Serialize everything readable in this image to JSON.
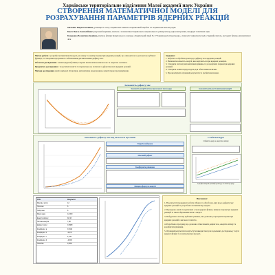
{
  "header": {
    "institution": "Харківське територіальне відділення Малої академії наук України",
    "title_line1": "СТВОРЕННЯ МАТЕМАТИЧНОЇ МОДЕЛІ ДЛЯ",
    "title_line2": "РОЗРАХУВАННЯ ПАРАМЕТРІВ ЯДЕРНИХ РЕАКЦІЙ"
  },
  "authors": {
    "a1_name": "Мельник Марія Євгенівна,",
    "a1_info": "учениця 11 класу Харківської гімназії «Харківський ліцей № 27 Харківської міської ради»",
    "a2_name": "Бекіл Павло Анатолійович,",
    "a2_info": "науковий керівник, вчитель з математики Харківського національного університету радіоелектроніки, кандидат технічних наук",
    "a3_name": "Безкровна Валентина Іванівна,",
    "a3_info": "вчитель фізики Комунального закладу «Харківський ліцей № 27 Харківської міської ради», спеціаліст вищої категорії, старший учитель, методист фізико-математичної ліги"
  },
  "intro": {
    "goal_label": "Метою роботи",
    "goal_text": "є розробка математичної моделі для опису та аналізу параметрів ядерних реакцій, що описуються за допомогою кубічної функції, та створення програмного забезпечення для визначення дефекту мас.",
    "object_label": "Об'єктом дослідження",
    "object_text": "є закони ядерної фізики, зокрема взаємозв'язок між масою та енергією частинок.",
    "subject_label": "Предметом дослідження",
    "subject_text": "є теоретичні поняття та параметри, що пов'язані з дефектом маси ядерних реакцій.",
    "methods_label": "Методи дослідження",
    "methods_text": "аналіз наукової літератури, математичне моделювання, комп'ютерне програмування."
  },
  "tasks": {
    "title": "Завдання:",
    "items": [
      "1. Зібрати та обробити дані щодо дефекту мас ядерних реакцій.",
      "2. Визначити кількість енергії, яка виділяється при ядерних реакціях.",
      "3. Створити систему математичних рівнянь та розрахувати параметри ядерних реакцій.",
      "4. Створити комп'ютерну модель для обчислення величин.",
      "5. Проаналізувати отримані результати та зробити висновки."
    ]
  },
  "section_defect": {
    "title": "Залежність дефекту мас",
    "sub1": "Залежність енергії зв'язку від масового числа ядра",
    "sub2": "Залежність кількості вивільненої енергії"
  },
  "section_middle": {
    "title": "Залежність дефекту мас від кількості нуклонів",
    "energy_label": "Енергія нейтрона",
    "mass_label": "Масовий дефект",
    "coefficients_label": "Коефіцієнти рівняння",
    "final_label": "Кінцева формула енергії"
  },
  "section_table": {
    "title": "Стабільні ядра",
    "title_note": "Стійкість ядер за енергією зв'язку",
    "caption": "Графіки енергії реакцій розпаду та синтезу ядер"
  },
  "data_table": {
    "header_left": "TPN",
    "header_right": "Результат",
    "rows": [
      {
        "label": "Масове число",
        "value": "12"
      },
      {
        "label": "Протони",
        "value": "6"
      },
      {
        "label": "Нейтрони",
        "value": "6"
      },
      {
        "label": "Маса ядра",
        "value": "12,000"
      },
      {
        "label": "Енергія зв'язку",
        "value": "92,16"
      },
      {
        "label": "Питома енергія",
        "value": "7,68"
      },
      {
        "label": "Дефект маси",
        "value": "0,0989"
      },
      {
        "label": "Коефіцієнт a",
        "value": "0,0112"
      },
      {
        "label": "Коефіцієнт b",
        "value": "-0,374"
      },
      {
        "label": "Коефіцієнт c",
        "value": "4,215"
      },
      {
        "label": "Коефіцієнт d",
        "value": "-2,318"
      },
      {
        "label": "Похибка",
        "value": "0,05%"
      }
    ]
  },
  "conclusions": {
    "title": "Висновки:",
    "items": [
      "1. В результаті проведеної роботи зібрано та оброблено дані щодо дефекту мас ядерних реакцій та розроблено математичну модель.",
      "2. Проведено аналіз теоретичних основ ядерної фізики, вивчено параметри ядерних реакцій та закон збереження маси і енергії.",
      "3. Побудовано систему кубічних рівнянь, яка дозволяє розрахувати параметри ядерних реакцій з високою точністю.",
      "4. Розроблено програму, що дозволяє обчислювати дефект мас, енергію зв'язку та коефіцієнти рівняння.",
      "5. Отримані результати можуть бути використані для подальших досліджень у галузі ядерної фізики та в навчальному процесі."
    ]
  }
}
